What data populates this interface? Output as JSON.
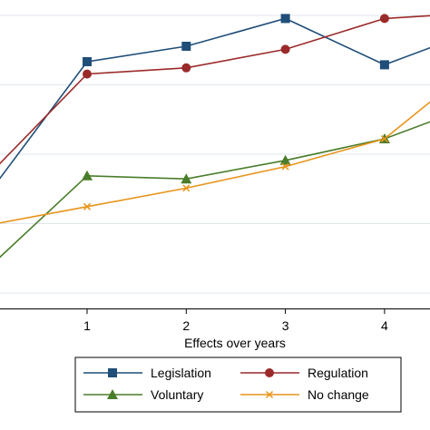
{
  "chart_data": {
    "type": "line",
    "title": "",
    "xlabel": "Effects over years",
    "ylabel": "",
    "x": [
      0,
      1,
      2,
      3,
      4,
      4.5
    ],
    "x_tick_labels": [
      "1",
      "2",
      "3",
      "4"
    ],
    "x_ticks": [
      1,
      2,
      3,
      4
    ],
    "xlim": [
      -0.12,
      4.5
    ],
    "ylim": [
      0,
      1
    ],
    "grid": true,
    "legend_position": "bottom",
    "series": [
      {
        "name": "Legislation",
        "marker": "square",
        "color": "#1f4e79",
        "values": [
          0.37,
          0.8,
          0.85,
          0.94,
          0.79,
          0.85
        ]
      },
      {
        "name": "Regulation",
        "marker": "circle",
        "color": "#9b2a2a",
        "values": [
          0.43,
          0.76,
          0.78,
          0.84,
          0.94,
          0.95
        ]
      },
      {
        "name": "Voluntary",
        "marker": "triangle",
        "color": "#4a7d2a",
        "values": [
          0.13,
          0.43,
          0.42,
          0.48,
          0.55,
          0.61
        ]
      },
      {
        "name": "No change",
        "marker": "x",
        "color": "#e8941a",
        "values": [
          0.27,
          0.33,
          0.39,
          0.46,
          0.55,
          0.68
        ]
      }
    ]
  }
}
